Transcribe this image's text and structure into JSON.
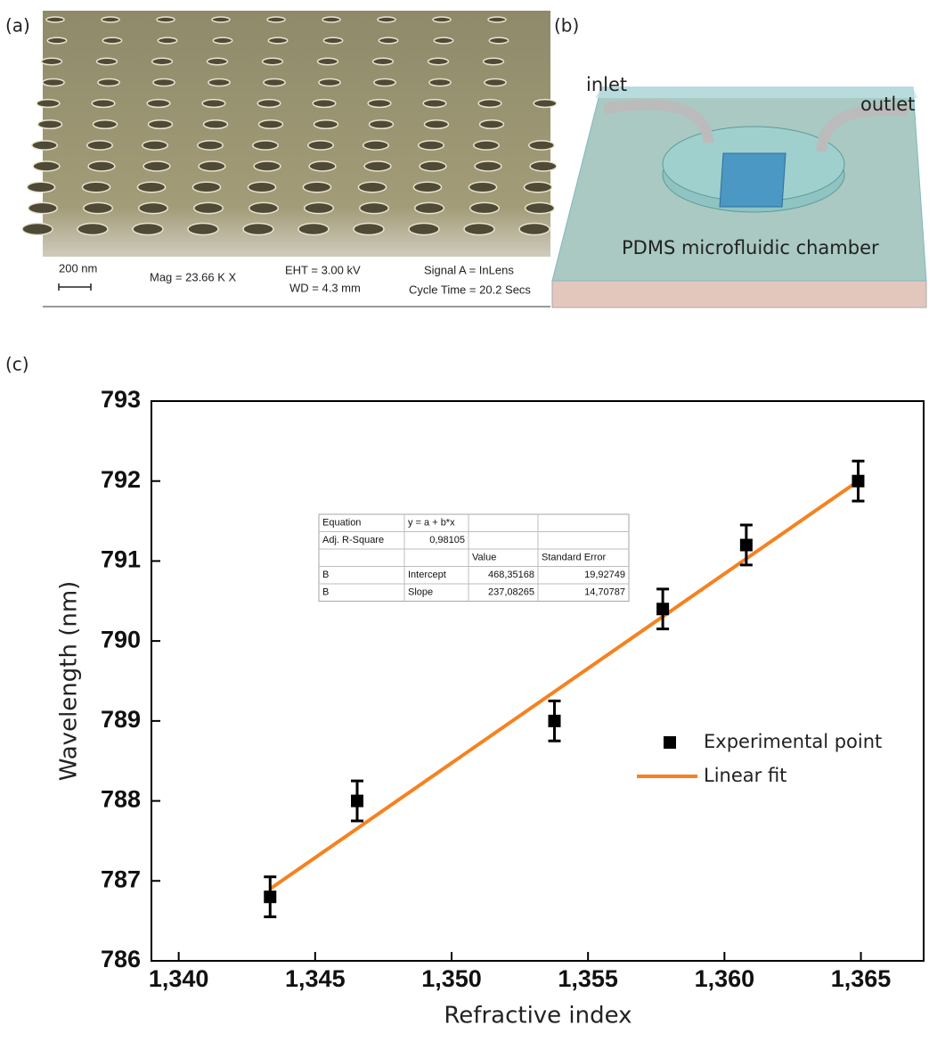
{
  "panel_labels": [
    "(a)",
    "(b)",
    "(c)"
  ],
  "sem": {
    "scale_bar": "200 nm",
    "mag": "Mag =  23.66 K X",
    "eht": "EHT = 3.00 kV",
    "wd": "WD = 4.3 mm",
    "signal": "Signal A = InLens",
    "cycle": "Cycle Time = 20.2 Secs"
  },
  "diagram": {
    "inlet": "inlet",
    "outlet": "outlet",
    "chamber": "PDMS microfluidic chamber"
  },
  "chart_data": {
    "type": "scatter",
    "xlabel": "Refractive index",
    "ylabel": "Wavelength (nm)",
    "xlim": [
      1.339,
      1.3673
    ],
    "xticks": [
      {
        "value": 1.34,
        "label": "1,340"
      },
      {
        "value": 1.345,
        "label": "1,345"
      },
      {
        "value": 1.35,
        "label": "1,350"
      },
      {
        "value": 1.355,
        "label": "1,355"
      },
      {
        "value": 1.36,
        "label": "1,360"
      },
      {
        "value": 1.365,
        "label": "1,365"
      }
    ],
    "ylim": [
      786,
      793
    ],
    "yticks": [
      786,
      787,
      788,
      789,
      790,
      791,
      792,
      793
    ],
    "series": [
      {
        "name": "Experimental point",
        "color": "#000000",
        "x": [
          1.34335,
          1.34654,
          1.35377,
          1.35774,
          1.3608,
          1.3649
        ],
        "values": [
          786.8,
          788.0,
          789.0,
          790.4,
          791.2,
          792.0
        ],
        "errors": [
          0.25,
          0.25,
          0.25,
          0.25,
          0.25,
          0.25
        ]
      },
      {
        "name": "Linear fit",
        "color": "#f5821f",
        "x": [
          1.34335,
          1.3649
        ],
        "values": [
          786.9,
          792.0
        ]
      }
    ],
    "legend": "right",
    "table": {
      "rows": [
        [
          "Equation",
          "y = a + b*x",
          null,
          null
        ],
        [
          "Adj. R-Square",
          "0,98105",
          null,
          null
        ],
        [
          null,
          null,
          "Value",
          "Standard Error"
        ],
        [
          "B",
          "Intercept",
          "468,35168",
          "19,92749"
        ],
        [
          "B",
          "Slope",
          "237,08265",
          "14,70787"
        ]
      ]
    }
  }
}
